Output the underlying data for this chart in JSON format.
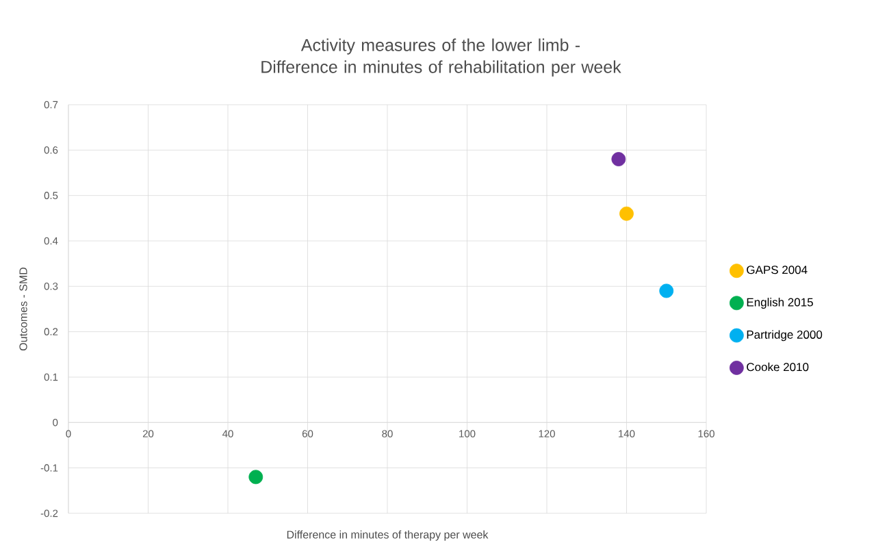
{
  "chart_data": {
    "type": "scatter",
    "title": "Activity measures of the lower limb - Difference in minutes of rehabilitation per week",
    "xlabel": "Difference in minutes of therapy per week",
    "ylabel": "Outcomes - SMD",
    "series": [
      {
        "name": "GAPS 2004",
        "color": "#ffc000",
        "x": [
          140
        ],
        "values": [
          0.46
        ]
      },
      {
        "name": "English 2015",
        "color": "#00b050",
        "x": [
          47
        ],
        "values": [
          -0.12
        ]
      },
      {
        "name": "Partridge 2000",
        "color": "#00b0f0",
        "x": [
          150
        ],
        "values": [
          0.29
        ]
      },
      {
        "name": "Cooke 2010",
        "color": "#7030a0",
        "x": [
          138
        ],
        "values": [
          0.58
        ]
      }
    ],
    "xlim": [
      0,
      160
    ],
    "xticks": [
      0,
      20,
      40,
      60,
      80,
      100,
      120,
      140,
      160
    ],
    "ylim": [
      -0.2,
      0.7
    ],
    "yticks": [
      -0.2,
      -0.1,
      0,
      0.1,
      0.2,
      0.3,
      0.4,
      0.5,
      0.6,
      0.7
    ],
    "grid": true,
    "legend": "right",
    "marker": "circle"
  }
}
